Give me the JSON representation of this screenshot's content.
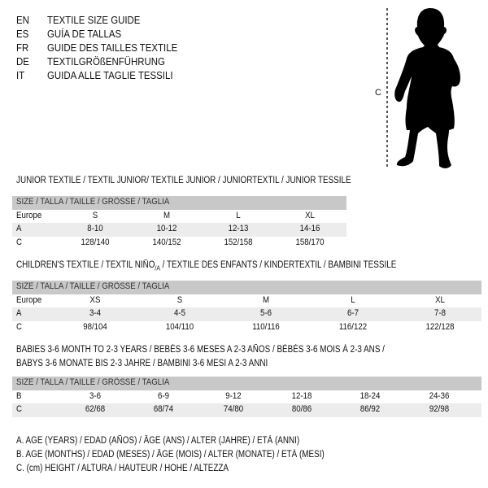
{
  "header": {
    "languages": [
      {
        "code": "EN",
        "title": "TEXTILE SIZE GUIDE"
      },
      {
        "code": "ES",
        "title": "GUÍA DE TALLAS"
      },
      {
        "code": "FR",
        "title": "GUIDE DES TAILLES TEXTILE"
      },
      {
        "code": "DE",
        "title": "TEXTILGRÖßENFÜHRUNG"
      },
      {
        "code": "IT",
        "title": "GUIDA ALLE TAGLIE TESSILI"
      }
    ]
  },
  "figure": {
    "height_label": "C"
  },
  "junior": {
    "title": "JUNIOR TEXTILE / TEXTIL JUNIOR/ TEXTILE JUNIOR / JUNIORTEXTIL / JUNIOR TESSILE",
    "size_header": "SIZE / TALLA / TAILLE / GRÖSSE / TAGLIA",
    "rows": [
      {
        "label": "Europe",
        "values": [
          "S",
          "M",
          "L",
          "XL"
        ]
      },
      {
        "label": "A",
        "values": [
          "8-10",
          "10-12",
          "12-13",
          "14-16"
        ]
      },
      {
        "label": "C",
        "values": [
          "128/140",
          "140/152",
          "152/158",
          "158/170"
        ]
      }
    ]
  },
  "children": {
    "title_pre": "CHILDREN'S TEXTILE / TEXTIL NIÑO",
    "title_sub": "/A",
    "title_post": " / TEXTILE DES ENFANTS / KINDERTEXTIL / BAMBINI TESSILE",
    "size_header": "SIZE / TALLA / TAILLE / GRÖSSE / TAGLIA",
    "rows": [
      {
        "label": "Europe",
        "values": [
          "XS",
          "S",
          "M",
          "L",
          "XL"
        ]
      },
      {
        "label": "A",
        "values": [
          "3-4",
          "4-5",
          "5-6",
          "6-7",
          "7-8"
        ]
      },
      {
        "label": "C",
        "values": [
          "98/104",
          "104/110",
          "110/116",
          "116/122",
          "122/128"
        ]
      }
    ]
  },
  "babies": {
    "title_line1": "BABIES 3-6 MONTH TO 2-3 YEARS / BEBÉS 3-6 MESES A 2-3 AÑOS / BÉBÉS 3-6 MOIS À 2-3 ANS /",
    "title_line2": "BABYS 3-6 MONATE BIS 2-3 JAHRE / BAMBINI 3-6 MESI A 2-3 ANNI",
    "size_header": "SIZE / TALLA / TAILLE / GRÖSSE / TAGLIA",
    "rows": [
      {
        "label": "B",
        "values": [
          "3-6",
          "6-9",
          "9-12",
          "12-18",
          "18-24",
          "24-36"
        ]
      },
      {
        "label": "C",
        "values": [
          "62/68",
          "68/74",
          "74/80",
          "80/86",
          "86/92",
          "92/98"
        ]
      }
    ]
  },
  "legend": [
    "A. AGE (YEARS) / EDAD (AÑOS) / ÂGE (ANS) / ALTER (JAHRE) / ETÀ (ANNI)",
    "B. AGE (MONTHS) / EDAD (MESES) / ÂGE (MOIS) / ALTER (MONATE) / ETÀ (MESI)",
    "C. (cm) HEIGHT / ALTURA / HAUTEUR / HÖHE / ALTEZZA"
  ]
}
